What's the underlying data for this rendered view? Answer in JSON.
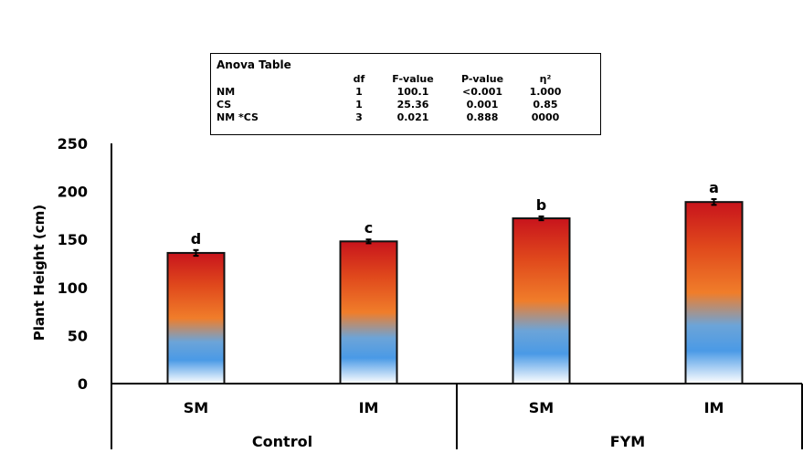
{
  "chart_data": {
    "type": "bar",
    "categories": [
      "SM",
      "IM",
      "SM",
      "IM"
    ],
    "groups": [
      {
        "label": "Control",
        "categories": [
          "SM",
          "IM"
        ]
      },
      {
        "label": "FYM",
        "categories": [
          "SM",
          "IM"
        ]
      }
    ],
    "values": [
      136,
      148,
      172,
      189
    ],
    "errors": [
      3,
      2,
      2,
      3
    ],
    "letters": [
      "d",
      "c",
      "b",
      "a"
    ],
    "ylabel": "Plant Height (cm)",
    "xlabel": "",
    "ylim": [
      0,
      250
    ],
    "yticks": [
      0,
      50,
      100,
      150,
      200,
      250
    ],
    "grid": false,
    "bar_gradient": [
      "#c8141c",
      "#e0491c",
      "#f07d2a",
      "#6ca4d8",
      "#4a9ae6",
      "#ffffff"
    ]
  },
  "anova": {
    "title": "Anova Table",
    "headers": [
      "",
      "df",
      "F-value",
      "P-value",
      "η²"
    ],
    "rows": [
      [
        "NM",
        "1",
        "100.1",
        "<0.001",
        "1.000"
      ],
      [
        "CS",
        "1",
        "25.36",
        "0.001",
        "0.85"
      ],
      [
        "NM *CS",
        "3",
        "0.021",
        "0.888",
        "0000"
      ]
    ]
  }
}
